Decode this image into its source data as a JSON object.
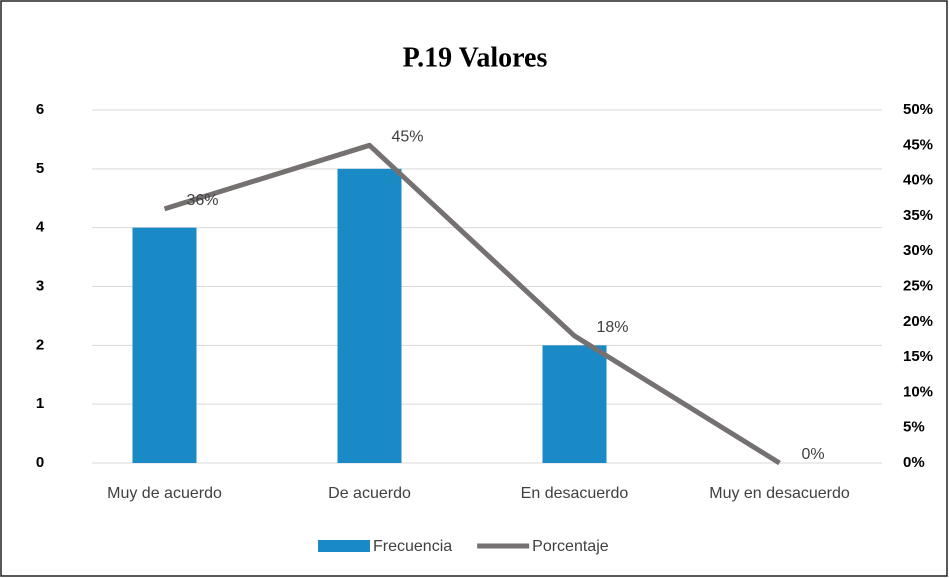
{
  "chart_data": {
    "type": "bar",
    "title": "P.19 Valores",
    "categories": [
      "Muy de acuerdo",
      "De acuerdo",
      "En desacuerdo",
      "Muy en desacuerdo"
    ],
    "series": [
      {
        "name": "Frecuencia",
        "type": "bar",
        "color": "#1a8ac6",
        "values": [
          4,
          5,
          2,
          0
        ]
      },
      {
        "name": "Porcentaje",
        "type": "line",
        "axis": "y2",
        "color": "#767171",
        "values": [
          36,
          45,
          18,
          0
        ],
        "value_labels": [
          "36%",
          "45%",
          "18%",
          "0%"
        ]
      }
    ],
    "ylim": [
      0,
      6
    ],
    "yticks": [
      0,
      1,
      2,
      3,
      4,
      5,
      6
    ],
    "y2lim": [
      0,
      50
    ],
    "y2ticks": [
      {
        "value": 0,
        "label": "0%"
      },
      {
        "value": 5,
        "label": "5%"
      },
      {
        "value": 10,
        "label": "10%"
      },
      {
        "value": 15,
        "label": "15%"
      },
      {
        "value": 20,
        "label": "20%"
      },
      {
        "value": 25,
        "label": "25%"
      },
      {
        "value": 30,
        "label": "30%"
      },
      {
        "value": 35,
        "label": "35%"
      },
      {
        "value": 40,
        "label": "40%"
      },
      {
        "value": 45,
        "label": "45%"
      },
      {
        "value": 50,
        "label": "50%"
      }
    ],
    "grid": true,
    "legend": "bottom"
  }
}
